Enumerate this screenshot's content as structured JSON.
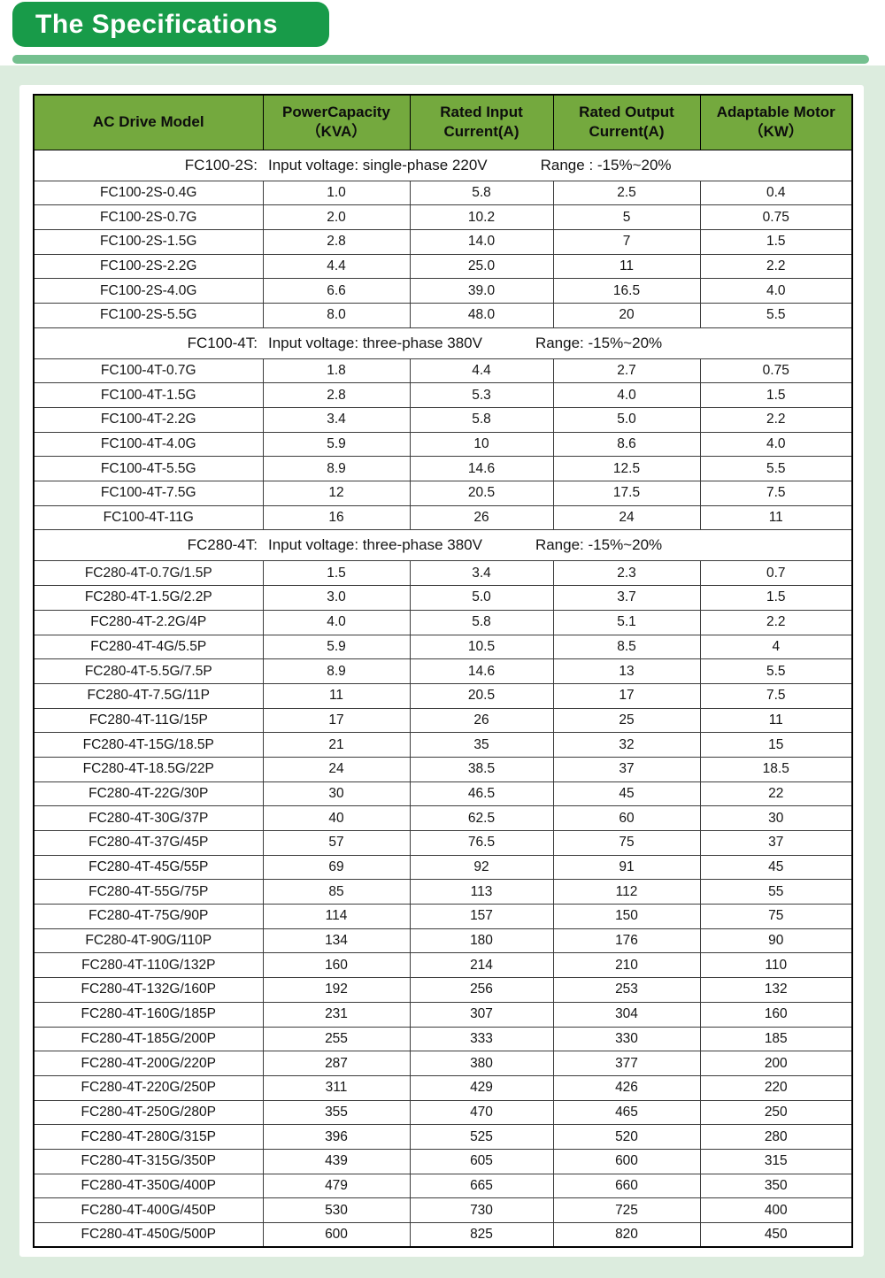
{
  "banner": {
    "title": "The Specifications"
  },
  "colors": {
    "banner_green": "#189b49",
    "bar_green": "#74c08f",
    "page_green": "#dcecde",
    "header_green": "#74a93e"
  },
  "table": {
    "headers": [
      {
        "line1": "AC Drive Model",
        "line2": ""
      },
      {
        "line1": "PowerCapacity",
        "line2": "（KVA）"
      },
      {
        "line1": "Rated Input",
        "line2": "Current(A)"
      },
      {
        "line1": "Rated Output",
        "line2": "Current(A)"
      },
      {
        "line1": "Adaptable Motor",
        "line2": "（KW）"
      }
    ],
    "sections": [
      {
        "model": "FC100-2S:",
        "voltage": "Input voltage: single-phase 220V",
        "range": "Range : -15%~20%",
        "rows": [
          [
            "FC100-2S-0.4G",
            "1.0",
            "5.8",
            "2.5",
            "0.4"
          ],
          [
            "FC100-2S-0.7G",
            "2.0",
            "10.2",
            "5",
            "0.75"
          ],
          [
            "FC100-2S-1.5G",
            "2.8",
            "14.0",
            "7",
            "1.5"
          ],
          [
            "FC100-2S-2.2G",
            "4.4",
            "25.0",
            "11",
            "2.2"
          ],
          [
            "FC100-2S-4.0G",
            "6.6",
            "39.0",
            "16.5",
            "4.0"
          ],
          [
            "FC100-2S-5.5G",
            "8.0",
            "48.0",
            "20",
            "5.5"
          ]
        ]
      },
      {
        "model": "FC100-4T:",
        "voltage": "Input voltage: three-phase 380V",
        "range": "Range: -15%~20%",
        "rows": [
          [
            "FC100-4T-0.7G",
            "1.8",
            "4.4",
            "2.7",
            "0.75"
          ],
          [
            "FC100-4T-1.5G",
            "2.8",
            "5.3",
            "4.0",
            "1.5"
          ],
          [
            "FC100-4T-2.2G",
            "3.4",
            "5.8",
            "5.0",
            "2.2"
          ],
          [
            "FC100-4T-4.0G",
            "5.9",
            "10",
            "8.6",
            "4.0"
          ],
          [
            "FC100-4T-5.5G",
            "8.9",
            "14.6",
            "12.5",
            "5.5"
          ],
          [
            "FC100-4T-7.5G",
            "12",
            "20.5",
            "17.5",
            "7.5"
          ],
          [
            "FC100-4T-11G",
            "16",
            "26",
            "24",
            "11"
          ]
        ]
      },
      {
        "model": "FC280-4T:",
        "voltage": "Input voltage: three-phase 380V",
        "range": "Range: -15%~20%",
        "rows": [
          [
            "FC280-4T-0.7G/1.5P",
            "1.5",
            "3.4",
            "2.3",
            "0.7"
          ],
          [
            "FC280-4T-1.5G/2.2P",
            "3.0",
            "5.0",
            "3.7",
            "1.5"
          ],
          [
            "FC280-4T-2.2G/4P",
            "4.0",
            "5.8",
            "5.1",
            "2.2"
          ],
          [
            "FC280-4T-4G/5.5P",
            "5.9",
            "10.5",
            "8.5",
            "4"
          ],
          [
            "FC280-4T-5.5G/7.5P",
            "8.9",
            "14.6",
            "13",
            "5.5"
          ],
          [
            "FC280-4T-7.5G/11P",
            "11",
            "20.5",
            "17",
            "7.5"
          ],
          [
            "FC280-4T-11G/15P",
            "17",
            "26",
            "25",
            "11"
          ],
          [
            "FC280-4T-15G/18.5P",
            "21",
            "35",
            "32",
            "15"
          ],
          [
            "FC280-4T-18.5G/22P",
            "24",
            "38.5",
            "37",
            "18.5"
          ],
          [
            "FC280-4T-22G/30P",
            "30",
            "46.5",
            "45",
            "22"
          ],
          [
            "FC280-4T-30G/37P",
            "40",
            "62.5",
            "60",
            "30"
          ],
          [
            "FC280-4T-37G/45P",
            "57",
            "76.5",
            "75",
            "37"
          ],
          [
            "FC280-4T-45G/55P",
            "69",
            "92",
            "91",
            "45"
          ],
          [
            "FC280-4T-55G/75P",
            "85",
            "113",
            "112",
            "55"
          ],
          [
            "FC280-4T-75G/90P",
            "114",
            "157",
            "150",
            "75"
          ],
          [
            "FC280-4T-90G/110P",
            "134",
            "180",
            "176",
            "90"
          ],
          [
            "FC280-4T-110G/132P",
            "160",
            "214",
            "210",
            "110"
          ],
          [
            "FC280-4T-132G/160P",
            "192",
            "256",
            "253",
            "132"
          ],
          [
            "FC280-4T-160G/185P",
            "231",
            "307",
            "304",
            "160"
          ],
          [
            "FC280-4T-185G/200P",
            "255",
            "333",
            "330",
            "185"
          ],
          [
            "FC280-4T-200G/220P",
            "287",
            "380",
            "377",
            "200"
          ],
          [
            "FC280-4T-220G/250P",
            "311",
            "429",
            "426",
            "220"
          ],
          [
            "FC280-4T-250G/280P",
            "355",
            "470",
            "465",
            "250"
          ],
          [
            "FC280-4T-280G/315P",
            "396",
            "525",
            "520",
            "280"
          ],
          [
            "FC280-4T-315G/350P",
            "439",
            "605",
            "600",
            "315"
          ],
          [
            "FC280-4T-350G/400P",
            "479",
            "665",
            "660",
            "350"
          ],
          [
            "FC280-4T-400G/450P",
            "530",
            "730",
            "725",
            "400"
          ],
          [
            "FC280-4T-450G/500P",
            "600",
            "825",
            "820",
            "450"
          ]
        ]
      }
    ]
  }
}
